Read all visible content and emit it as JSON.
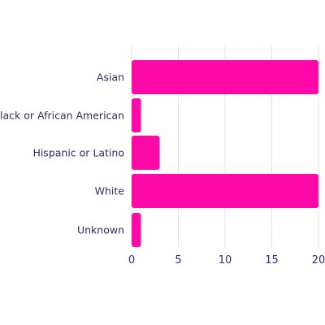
{
  "chart_data": {
    "type": "bar",
    "orientation": "horizontal",
    "categories": [
      "Asian",
      "Black or African American",
      "Hispanic or Latino",
      "White",
      "Unknown"
    ],
    "values": [
      20,
      1,
      3,
      20,
      1
    ],
    "xlim": [
      0,
      20
    ],
    "xticks": [
      "0",
      "5",
      "10",
      "15",
      "20"
    ],
    "grid": true,
    "bar_color": "#ff0aa8",
    "title": "",
    "xlabel": "",
    "ylabel": ""
  }
}
